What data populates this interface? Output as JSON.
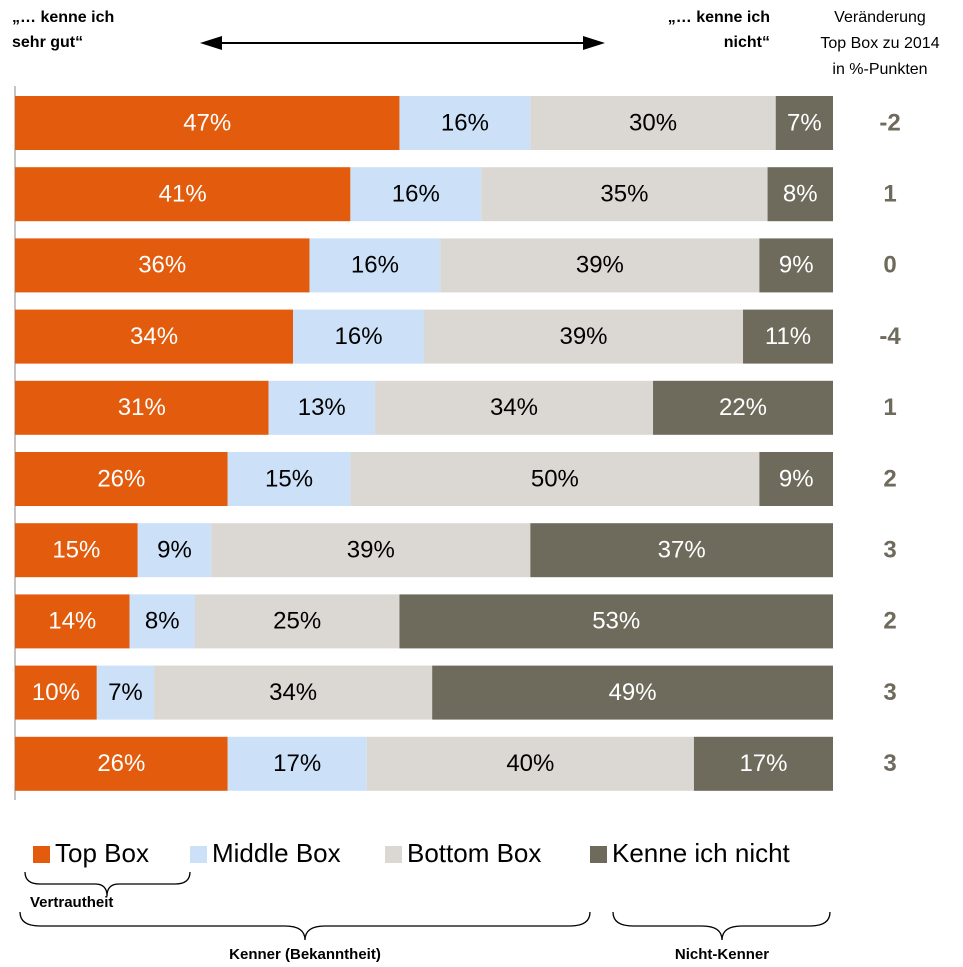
{
  "chart_data": {
    "type": "stacked_bar_horizontal",
    "header_left": [
      "„… kenne ich",
      "sehr gut“"
    ],
    "header_right": [
      "„… kenne ich",
      "nicht“"
    ],
    "change_title": [
      "Veränderung",
      "Top Box zu 2014",
      "in %-Punkten"
    ],
    "xlim": [
      0,
      100
    ],
    "series": [
      {
        "name": "Top Box",
        "color": "#e35b0c",
        "label_color": "#ffffff",
        "values": [
          47,
          41,
          36,
          34,
          31,
          26,
          15,
          14,
          10,
          26
        ],
        "value_labels": [
          "47%",
          "41%",
          "36%",
          "34%",
          "31%",
          "26%",
          "15%",
          "14%",
          "10%",
          "26%"
        ]
      },
      {
        "name": "Middle Box",
        "color": "#cce0f8",
        "label_color": "#000000",
        "values": [
          16,
          16,
          16,
          16,
          13,
          15,
          9,
          8,
          7,
          17
        ],
        "value_labels": [
          "16%",
          "16%",
          "16%",
          "16%",
          "13%",
          "15%",
          "9%",
          "8%",
          "7%",
          "17%"
        ]
      },
      {
        "name": "Bottom Box",
        "color": "#dbd8d3",
        "label_color": "#000000",
        "values": [
          30,
          35,
          39,
          39,
          34,
          50,
          39,
          25,
          34,
          40
        ],
        "value_labels": [
          "30%",
          "35%",
          "39%",
          "39%",
          "34%",
          "50%",
          "39%",
          "25%",
          "34%",
          "40%"
        ]
      },
      {
        "name": "Kenne ich nicht",
        "color": "#6e6a5c",
        "label_color": "#ffffff",
        "values": [
          7,
          8,
          9,
          11,
          22,
          9,
          37,
          53,
          49,
          17
        ],
        "value_labels": [
          "7%",
          "8%",
          "9%",
          "11%",
          "22%",
          "9%",
          "37%",
          "53%",
          "49%",
          "17%"
        ]
      }
    ],
    "change_values": [
      -2,
      1,
      0,
      -4,
      1,
      2,
      3,
      2,
      3,
      3
    ],
    "brace_labels": [
      "Vertrautheit",
      "Kenner (Bekanntheit)",
      "Nicht-Kenner"
    ]
  }
}
